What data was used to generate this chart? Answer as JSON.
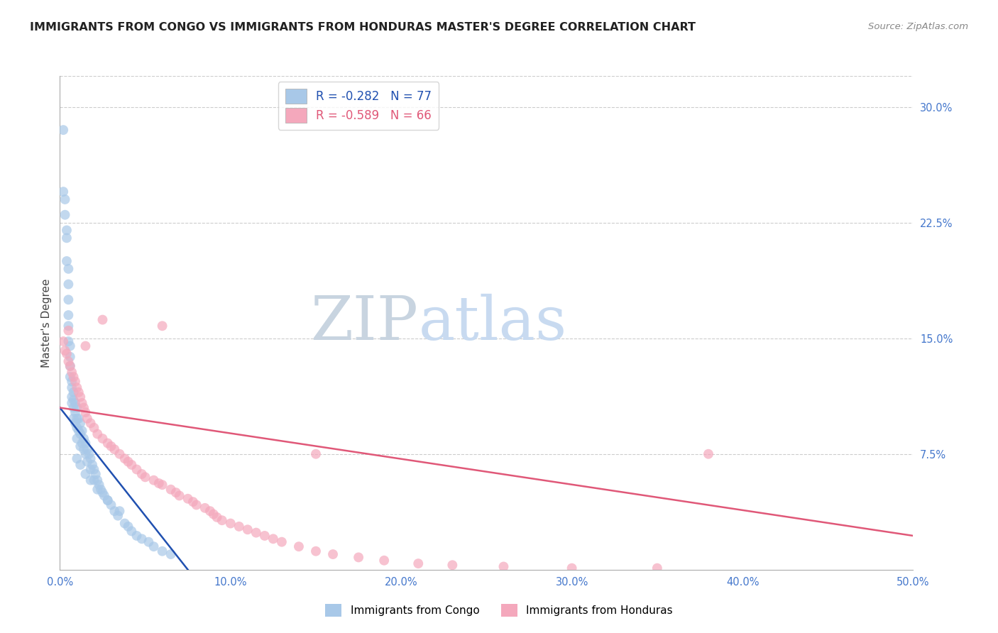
{
  "title": "IMMIGRANTS FROM CONGO VS IMMIGRANTS FROM HONDURAS MASTER'S DEGREE CORRELATION CHART",
  "source": "Source: ZipAtlas.com",
  "ylabel": "Master's Degree",
  "right_yticks": [
    "30.0%",
    "22.5%",
    "15.0%",
    "7.5%"
  ],
  "right_ytick_vals": [
    0.3,
    0.225,
    0.15,
    0.075
  ],
  "xmin": 0.0,
  "xmax": 0.5,
  "ymin": 0.0,
  "ymax": 0.32,
  "color_congo": "#a8c8e8",
  "color_honduras": "#f4a8bc",
  "line_color_congo": "#2050b0",
  "line_color_honduras": "#e05878",
  "watermark_ZIP": "ZIP",
  "watermark_atlas": "atlas",
  "watermark_color_ZIP": "#c8d4e0",
  "watermark_color_atlas": "#c8daf0",
  "legend_R_congo": "-0.282",
  "legend_N_congo": "77",
  "legend_R_honduras": "-0.589",
  "legend_N_honduras": "66",
  "congo_x": [
    0.002,
    0.002,
    0.003,
    0.003,
    0.004,
    0.004,
    0.004,
    0.005,
    0.005,
    0.005,
    0.005,
    0.005,
    0.005,
    0.006,
    0.006,
    0.006,
    0.006,
    0.007,
    0.007,
    0.007,
    0.007,
    0.008,
    0.008,
    0.008,
    0.008,
    0.009,
    0.009,
    0.009,
    0.01,
    0.01,
    0.01,
    0.01,
    0.011,
    0.011,
    0.012,
    0.012,
    0.012,
    0.013,
    0.013,
    0.014,
    0.014,
    0.015,
    0.015,
    0.016,
    0.016,
    0.017,
    0.018,
    0.018,
    0.019,
    0.02,
    0.02,
    0.021,
    0.022,
    0.023,
    0.024,
    0.025,
    0.026,
    0.028,
    0.03,
    0.032,
    0.034,
    0.038,
    0.04,
    0.042,
    0.045,
    0.048,
    0.052,
    0.055,
    0.06,
    0.065,
    0.01,
    0.012,
    0.015,
    0.018,
    0.022,
    0.028,
    0.035
  ],
  "congo_y": [
    0.285,
    0.245,
    0.24,
    0.23,
    0.22,
    0.215,
    0.2,
    0.195,
    0.185,
    0.175,
    0.165,
    0.158,
    0.148,
    0.145,
    0.138,
    0.132,
    0.125,
    0.122,
    0.118,
    0.112,
    0.108,
    0.115,
    0.11,
    0.105,
    0.098,
    0.108,
    0.102,
    0.095,
    0.105,
    0.098,
    0.092,
    0.085,
    0.098,
    0.09,
    0.095,
    0.088,
    0.08,
    0.09,
    0.082,
    0.085,
    0.078,
    0.082,
    0.075,
    0.078,
    0.07,
    0.075,
    0.072,
    0.065,
    0.068,
    0.065,
    0.058,
    0.062,
    0.058,
    0.055,
    0.052,
    0.05,
    0.048,
    0.045,
    0.042,
    0.038,
    0.035,
    0.03,
    0.028,
    0.025,
    0.022,
    0.02,
    0.018,
    0.015,
    0.012,
    0.01,
    0.072,
    0.068,
    0.062,
    0.058,
    0.052,
    0.045,
    0.038
  ],
  "honduras_x": [
    0.002,
    0.003,
    0.004,
    0.005,
    0.006,
    0.007,
    0.008,
    0.009,
    0.01,
    0.011,
    0.012,
    0.013,
    0.014,
    0.015,
    0.016,
    0.018,
    0.02,
    0.022,
    0.025,
    0.028,
    0.03,
    0.032,
    0.035,
    0.038,
    0.04,
    0.042,
    0.045,
    0.048,
    0.05,
    0.055,
    0.058,
    0.06,
    0.065,
    0.068,
    0.07,
    0.075,
    0.078,
    0.08,
    0.085,
    0.088,
    0.09,
    0.092,
    0.095,
    0.1,
    0.105,
    0.11,
    0.115,
    0.12,
    0.125,
    0.13,
    0.14,
    0.15,
    0.16,
    0.175,
    0.19,
    0.21,
    0.23,
    0.26,
    0.3,
    0.35,
    0.005,
    0.015,
    0.025,
    0.06,
    0.15,
    0.38
  ],
  "honduras_y": [
    0.148,
    0.142,
    0.14,
    0.135,
    0.132,
    0.128,
    0.125,
    0.122,
    0.118,
    0.115,
    0.112,
    0.108,
    0.105,
    0.102,
    0.098,
    0.095,
    0.092,
    0.088,
    0.085,
    0.082,
    0.08,
    0.078,
    0.075,
    0.072,
    0.07,
    0.068,
    0.065,
    0.062,
    0.06,
    0.058,
    0.056,
    0.055,
    0.052,
    0.05,
    0.048,
    0.046,
    0.044,
    0.042,
    0.04,
    0.038,
    0.036,
    0.034,
    0.032,
    0.03,
    0.028,
    0.026,
    0.024,
    0.022,
    0.02,
    0.018,
    0.015,
    0.012,
    0.01,
    0.008,
    0.006,
    0.004,
    0.003,
    0.002,
    0.001,
    0.001,
    0.155,
    0.145,
    0.162,
    0.158,
    0.075,
    0.075
  ],
  "congo_line_x": [
    0.0,
    0.075
  ],
  "congo_line_y": [
    0.105,
    0.0
  ],
  "honduras_line_x": [
    0.0,
    0.5
  ],
  "honduras_line_y": [
    0.105,
    0.022
  ]
}
